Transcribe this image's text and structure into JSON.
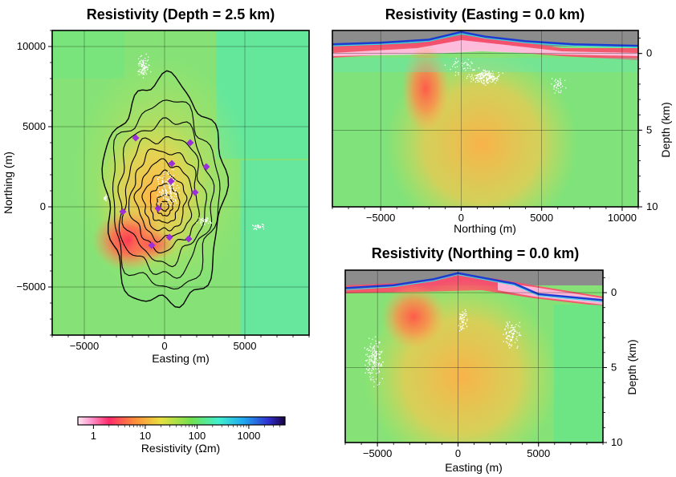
{
  "figure": {
    "plan_view": {
      "title": "Resistivity (Depth = 2.5 km)",
      "xlabel": "Easting (m)",
      "ylabel": "Northing (m)",
      "xticks": [
        "−5000",
        "0",
        "5000"
      ],
      "yticks": [
        "10000",
        "5000",
        "0",
        "−5000"
      ]
    },
    "ew_section": {
      "title": "Resistivity (Easting = 0.0 km)",
      "xlabel": "Northing (m)",
      "ylabel": "Depth (km)",
      "xticks": [
        "−5000",
        "0",
        "5000",
        "10000"
      ],
      "yticks": [
        "0",
        "5",
        "10"
      ]
    },
    "ns_section": {
      "title": "Resistivity (Northing = 0.0 km)",
      "xlabel": "Easting (m)",
      "ylabel": "Depth (km)",
      "xticks": [
        "−5000",
        "0",
        "5000"
      ],
      "yticks": [
        "0",
        "5",
        "10"
      ]
    },
    "colorbar": {
      "label": "Resistivity (Ωm)",
      "ticks": [
        "1",
        "10",
        "100",
        "1000"
      ]
    }
  },
  "colors": {
    "topo_cover": "#8c8c8c",
    "station_marker": "#9b30d9",
    "seismicity": "#ffffff",
    "contour": "#000000"
  },
  "chart_data": [
    {
      "type": "heatmap",
      "name": "plan-view",
      "title": "Resistivity (Depth = 2.5 km)",
      "xlabel": "Easting (m)",
      "ylabel": "Northing (m)",
      "xlim": [
        -7000,
        9000
      ],
      "ylim": [
        -8000,
        11000
      ],
      "colorscale": "log",
      "clim_ohm_m": [
        0.5,
        5000
      ],
      "background_ohm_m": 70,
      "anomalies": [
        {
          "kind": "low",
          "x": -2500,
          "y": -1800,
          "ohm_m": 3
        },
        {
          "kind": "low",
          "x": -500,
          "y": -2000,
          "ohm_m": 6
        },
        {
          "kind": "moderate",
          "x": -1000,
          "y": 1000,
          "ohm_m": 15
        }
      ],
      "stations": [
        {
          "x": -1800,
          "y": 4300
        },
        {
          "x": 1600,
          "y": 4000
        },
        {
          "x": 450,
          "y": 2700
        },
        {
          "x": 2600,
          "y": 2500
        },
        {
          "x": 400,
          "y": 1600
        },
        {
          "x": 1900,
          "y": 900
        },
        {
          "x": -400,
          "y": -100
        },
        {
          "x": -2600,
          "y": -300
        },
        {
          "x": 300,
          "y": -1900
        },
        {
          "x": 1500,
          "y": -2000
        },
        {
          "x": -800,
          "y": -2400
        }
      ],
      "grid": true
    },
    {
      "type": "heatmap",
      "name": "easting-section",
      "title": "Resistivity (Easting = 0.0 km)",
      "xlabel": "Northing (m)",
      "ylabel": "Depth (km)",
      "xlim": [
        -8000,
        11000
      ],
      "ylim": [
        10,
        -1.5
      ],
      "colorscale": "log",
      "background_ohm_m": 70,
      "surface_layer_ohm_m": 2,
      "anomalies": [
        {
          "kind": "low",
          "x": -2000,
          "depth": 2,
          "ohm_m": 5
        },
        {
          "kind": "moderate",
          "x": 1000,
          "depth": 6,
          "ohm_m": 15
        }
      ],
      "grid": true
    },
    {
      "type": "heatmap",
      "name": "northing-section",
      "title": "Resistivity (Northing = 0.0 km)",
      "xlabel": "Easting (m)",
      "ylabel": "Depth (km)",
      "xlim": [
        -7000,
        9000
      ],
      "ylim": [
        10,
        -1.5
      ],
      "colorscale": "log",
      "background_ohm_m": 70,
      "surface_layer_ohm_m": 2,
      "anomalies": [
        {
          "kind": "low",
          "x": -2700,
          "depth": 1.5,
          "ohm_m": 4
        },
        {
          "kind": "moderate",
          "x": 0,
          "depth": 6,
          "ohm_m": 15
        }
      ],
      "grid": true
    }
  ]
}
